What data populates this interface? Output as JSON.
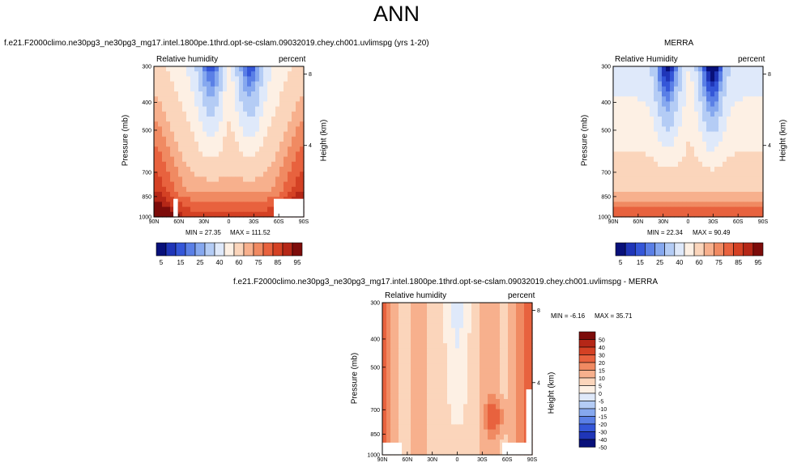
{
  "page": {
    "title": "ANN"
  },
  "colors": {
    "abs_levels": [
      "#08107a",
      "#1f35b8",
      "#3456d8",
      "#5a7fe6",
      "#86a8ef",
      "#b4ccf5",
      "#dfe9fa",
      "#fdf0e4",
      "#fbd5bb",
      "#f7b08d",
      "#f08a62",
      "#e8623e",
      "#d44124",
      "#b52717",
      "#7d0c0a"
    ],
    "diff_levels": [
      "#08107a",
      "#1f35b8",
      "#3456d8",
      "#5a7fe6",
      "#86a8ef",
      "#b4ccf5",
      "#dfe9fa",
      "#fdf0e4",
      "#fbd5bb",
      "#f7b08d",
      "#f08a62",
      "#e8623e",
      "#d44124",
      "#b52717",
      "#7d0c0a"
    ]
  },
  "chart_data": [
    {
      "type": "heatmap",
      "title": "f.e21.F2000climo.ne30pg3_ne30pg3_mg17.intel.1800pe.1thrd.opt-se-cslam.09032019.chey.ch001.uvlimspg (yrs 1-20)",
      "left_string": "Relative humidity",
      "right_string": "percent",
      "xlabel": "",
      "ylabel": "Pressure (mb)",
      "y2label": "Height (km)",
      "x_ticks": [
        "90N",
        "60N",
        "30N",
        "0",
        "30S",
        "60S",
        "90S"
      ],
      "y_ticks": [
        "300",
        "400",
        "500",
        "700",
        "850",
        "1000"
      ],
      "y2_ticks": [
        "8",
        "4"
      ],
      "min_label": "MIN = 27.35",
      "max_label": "MAX = 111.52",
      "min": 27.35,
      "max": 111.52,
      "colorbar_labels": [
        "5",
        "15",
        "25",
        "40",
        "60",
        "75",
        "85",
        "95"
      ]
    },
    {
      "type": "heatmap",
      "title": "MERRA",
      "left_string": "Relative Humidity",
      "right_string": "percent",
      "xlabel": "",
      "ylabel": "Pressure (mb)",
      "y2label": "Height (km)",
      "x_ticks": [
        "90N",
        "60N",
        "30N",
        "0",
        "30S",
        "60S",
        "90S"
      ],
      "y_ticks": [
        "300",
        "400",
        "500",
        "700",
        "850",
        "1000"
      ],
      "y2_ticks": [
        "8",
        "4"
      ],
      "min_label": "MIN = 22.34",
      "max_label": "MAX = 90.49",
      "min": 22.34,
      "max": 90.49,
      "colorbar_labels": [
        "5",
        "15",
        "25",
        "40",
        "60",
        "75",
        "85",
        "95"
      ]
    },
    {
      "type": "heatmap",
      "title": "f.e21.F2000climo.ne30pg3_ne30pg3_mg17.intel.1800pe.1thrd.opt-se-cslam.09032019.chey.ch001.uvlimspg - MERRA",
      "left_string": "Relative humidity",
      "right_string": "percent",
      "xlabel": "",
      "ylabel": "Pressure (mb)",
      "y2label": "Height (km)",
      "x_ticks": [
        "90N",
        "60N",
        "30N",
        "0",
        "30S",
        "60S",
        "90S"
      ],
      "y_ticks": [
        "300",
        "400",
        "500",
        "700",
        "850",
        "1000"
      ],
      "y2_ticks": [
        "8",
        "4"
      ],
      "min_label": "MIN = -6.16",
      "max_label": "MAX = 35.71",
      "min": -6.16,
      "max": 35.71,
      "colorbar_labels": [
        "50",
        "40",
        "30",
        "20",
        "15",
        "10",
        "5",
        "0",
        "-5",
        "-10",
        "-15",
        "-20",
        "-30",
        "-40",
        "-50"
      ]
    }
  ]
}
